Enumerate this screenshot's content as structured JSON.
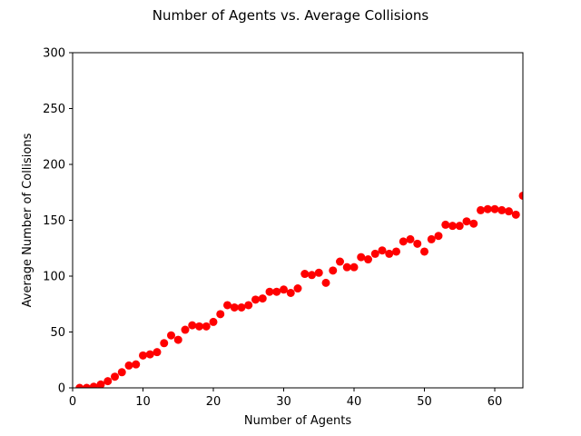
{
  "chart_data": {
    "type": "scatter",
    "title": "Number of Agents vs. Average Collisions",
    "xlabel": "Number of Agents",
    "ylabel": "Average Number of Collisions",
    "xlim": [
      0,
      64
    ],
    "ylim": [
      0,
      300
    ],
    "xticks": [
      0,
      10,
      20,
      30,
      40,
      50,
      60
    ],
    "yticks": [
      0,
      50,
      100,
      150,
      200,
      250,
      300
    ],
    "grid": false,
    "marker_color": "#ff0000",
    "series": [
      {
        "x": [
          1,
          2,
          3,
          4,
          5,
          6,
          7,
          8,
          9,
          10,
          11,
          12,
          13,
          14,
          15,
          16,
          17,
          18,
          19,
          20,
          21,
          22,
          23,
          24,
          25,
          26,
          27,
          28,
          29,
          30,
          31,
          32,
          33,
          34,
          35,
          36,
          37,
          38,
          39,
          40,
          41,
          42,
          43,
          44,
          45,
          46,
          47,
          48,
          49,
          50,
          51,
          52,
          53,
          54,
          55,
          56,
          57,
          58,
          59,
          60,
          61,
          62,
          63,
          64
        ],
        "y": [
          0,
          0,
          1,
          3,
          6,
          10,
          14,
          20,
          21,
          29,
          30,
          32,
          40,
          47,
          43,
          52,
          56,
          55,
          55,
          59,
          66,
          74,
          72,
          72,
          74,
          79,
          80,
          86,
          86,
          88,
          85,
          89,
          102,
          101,
          103,
          94,
          105,
          113,
          108,
          108,
          117,
          115,
          120,
          123,
          120,
          122,
          131,
          133,
          129,
          122,
          133,
          136,
          146,
          145,
          145,
          149,
          147,
          159,
          160,
          160,
          159,
          158,
          155,
          172
        ]
      }
    ]
  }
}
